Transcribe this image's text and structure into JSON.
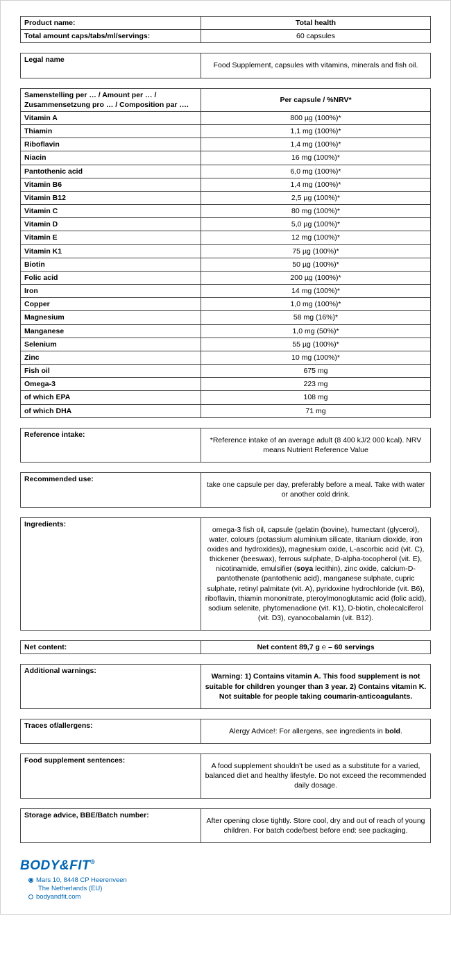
{
  "colors": {
    "border": "#444444",
    "text": "#000000",
    "brand": "#0066b3",
    "bg": "#ffffff"
  },
  "font": {
    "family": "Arial",
    "size_pt": 10.5,
    "logo_size_pt": 19
  },
  "header": {
    "product_name_label": "Product name:",
    "product_name_value": "Total health",
    "amount_label": "Total amount caps/tabs/ml/servings:",
    "amount_value": "60 capsules"
  },
  "legal": {
    "label": "Legal name",
    "value": "Food Supplement, capsules with vitamins, minerals and fish oil."
  },
  "composition": {
    "header_label": "Samenstelling per … / Amount per … / Zusammensetzung pro … / Composition par ….",
    "header_value": "Per capsule / %NRV*",
    "rows": [
      {
        "label": "Vitamin A",
        "value": "800 µg (100%)*"
      },
      {
        "label": "Thiamin",
        "value": "1,1 mg (100%)*"
      },
      {
        "label": "Riboflavin",
        "value": "1,4 mg (100%)*"
      },
      {
        "label": "Niacin",
        "value": "16 mg (100%)*"
      },
      {
        "label": "Pantothenic acid",
        "value": "6,0 mg (100%)*"
      },
      {
        "label": "Vitamin B6",
        "value": "1,4 mg (100%)*"
      },
      {
        "label": "Vitamin B12",
        "value": "2,5 µg (100%)*"
      },
      {
        "label": "Vitamin C",
        "value": "80 mg (100%)*"
      },
      {
        "label": "Vitamin D",
        "value": "5,0 µg (100%)*"
      },
      {
        "label": "Vitamin E",
        "value": "12 mg (100%)*"
      },
      {
        "label": "Vitamin K1",
        "value": "75 µg (100%)*"
      },
      {
        "label": "Biotin",
        "value": "50 µg (100%)*"
      },
      {
        "label": "Folic acid",
        "value": "200 µg (100%)*"
      },
      {
        "label": "Iron",
        "value": "14 mg (100%)*"
      },
      {
        "label": "Copper",
        "value": "1,0 mg (100%)*"
      },
      {
        "label": "Magnesium",
        "value": "58 mg (16%)*"
      },
      {
        "label": "Manganese",
        "value": "1,0 mg (50%)*"
      },
      {
        "label": "Selenium",
        "value": "55 µg (100%)*"
      },
      {
        "label": "Zinc",
        "value": "10 mg (100%)*"
      },
      {
        "label": "Fish oil",
        "value": "675 mg"
      },
      {
        "label": "Omega-3",
        "value": "223 mg"
      },
      {
        "label": "of which EPA",
        "value": "108 mg"
      },
      {
        "label": "of which DHA",
        "value": "71 mg"
      }
    ]
  },
  "reference": {
    "label": "Reference intake:",
    "value": "*Reference intake of an average adult (8 400 kJ/2 000 kcal). NRV means Nutrient Reference Value"
  },
  "use": {
    "label": "Recommended use:",
    "value": "take one capsule per day, preferably before a meal. Take with water or another cold drink."
  },
  "ingredients": {
    "label": "Ingredients:",
    "pre": "omega-3 fish oil, capsule (gelatin (bovine), humectant (glycerol), water, colours (potassium aluminium silicate, titanium dioxide, iron oxides and hydroxides)), magnesium oxide, L-ascorbic acid (vit. C), thickener (beeswax), ferrous sulphate, D-alpha-tocopherol (vit. E), nicotinamide, emulsifier (",
    "bold": "soya",
    "post": " lecithin), zinc oxide, calcium-D-pantothenate (pantothenic acid), manganese sulphate, cupric sulphate, retinyl palmitate (vit. A), pyridoxine hydrochloride (vit. B6), riboflavin, thiamin mononitrate, pteroylmonoglutamic acid (folic acid), sodium selenite, phytomenadione (vit. K1), D-biotin, cholecalciferol (vit. D3), cyanocobalamin (vit. B12)."
  },
  "net": {
    "label": "Net content:",
    "value": "Net content 89,7 g ℮ – 60 servings"
  },
  "warn": {
    "label": "Additional warnings:",
    "value": "Warning: 1) Contains vitamin A. This food supplement is not suitable for children younger than 3 year. 2) Contains vitamin K. Not suitable for people taking coumarin-anticoagulants."
  },
  "allergens": {
    "label": "Traces of/allergens:",
    "pre": "Alergy Advice!: For allergens, see ingredients in ",
    "bold": "bold",
    "post": "."
  },
  "supplement": {
    "label": "Food supplement sentences:",
    "value": "A food supplement shouldn't be used as a substitute for a varied, balanced diet and healthy lifestyle. Do not exceed the recommended daily dosage."
  },
  "storage": {
    "label": "Storage advice, BBE/Batch number:",
    "value": "After opening close tightly. Store cool, dry and out of reach of young children. For batch code/best before end: see packaging."
  },
  "footer": {
    "logo": "BODY&FIT",
    "address1": "Mars 10, 8448 CP  Heerenveen",
    "address2": "The Netherlands (EU)",
    "web": "bodyandfit.com"
  }
}
